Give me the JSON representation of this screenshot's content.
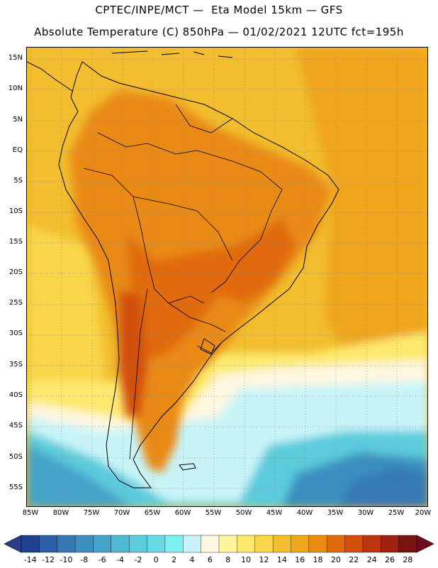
{
  "title_line1": "CPTEC/INPE/MCT —  Eta Model 15km — GFS",
  "title_line2": "Absolute Temperature (C) 850hPa — 01/02/2021 12UTC fct=195h",
  "lat_labels": [
    "15N",
    "10N",
    "5N",
    "EQ",
    "5S",
    "10S",
    "15S",
    "20S",
    "25S",
    "30S",
    "35S",
    "40S",
    "45S",
    "50S",
    "55S"
  ],
  "lon_labels": [
    "85W",
    "80W",
    "75W",
    "70W",
    "65W",
    "60W",
    "55W",
    "50W",
    "45W",
    "40W",
    "35W",
    "30W",
    "25W",
    "20W"
  ],
  "colorbar": {
    "labels": [
      "-14",
      "-12",
      "-10",
      "-8",
      "-6",
      "-4",
      "-2",
      "0",
      "2",
      "4",
      "6",
      "8",
      "10",
      "12",
      "14",
      "16",
      "18",
      "20",
      "22",
      "24",
      "26",
      "28"
    ],
    "colors": [
      "#1f3f8f",
      "#2a5ea8",
      "#3479b5",
      "#3b8fc0",
      "#44a3c9",
      "#4fb8d3",
      "#5ccbdc",
      "#69dbe6",
      "#7ff0f2",
      "#c8f4f8",
      "#fff7e0",
      "#fff59a",
      "#fde96e",
      "#f9d54a",
      "#f2bd2e",
      "#efa51c",
      "#e98a12",
      "#e06a0d",
      "#d24f0c",
      "#bd370e",
      "#9e2010",
      "#7a1410"
    ],
    "left_arrow_color": "#2a3e8c",
    "right_arrow_color": "#6e0a22"
  },
  "palette": {
    "ocean_warm": "#f2bd2e",
    "ocean_mid": "#f9d54a",
    "land_hot": "#e98a12",
    "land_hotter": "#e06a0d",
    "south_cold": "#4fb8d3",
    "south_colder": "#3b8fc0",
    "cream": "#fff7e0",
    "light_cyan": "#c8f4f8"
  }
}
